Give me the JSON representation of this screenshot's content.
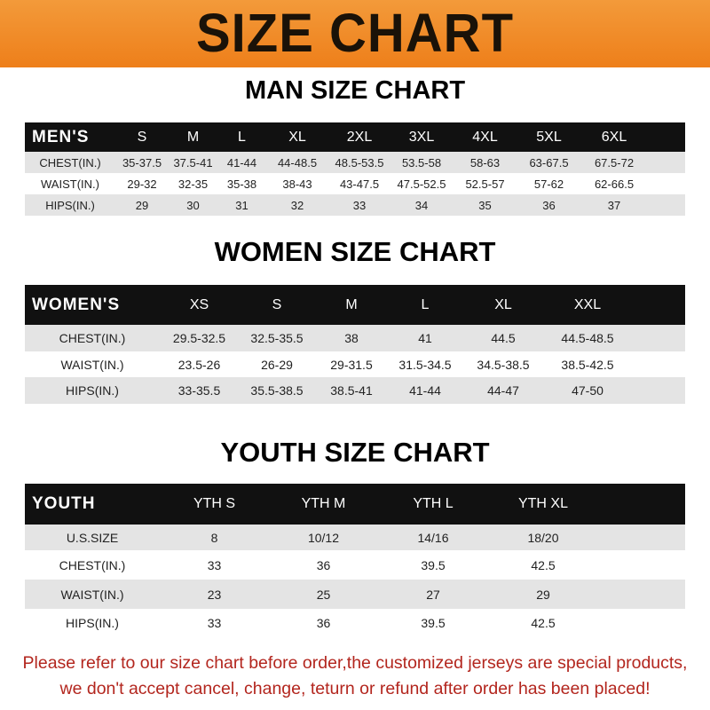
{
  "title": "SIZE CHART",
  "men": {
    "title": "MAN SIZE CHART",
    "header": [
      "MEN'S",
      "S",
      "M",
      "L",
      "XL",
      "2XL",
      "3XL",
      "4XL",
      "5XL",
      "6XL"
    ],
    "rows": [
      [
        "CHEST(IN.)",
        "35-37.5",
        "37.5-41",
        "41-44",
        "44-48.5",
        "48.5-53.5",
        "53.5-58",
        "58-63",
        "63-67.5",
        "67.5-72"
      ],
      [
        "WAIST(IN.)",
        "29-32",
        "32-35",
        "35-38",
        "38-43",
        "43-47.5",
        "47.5-52.5",
        "52.5-57",
        "57-62",
        "62-66.5"
      ],
      [
        "HIPS(IN.)",
        "29",
        "30",
        "31",
        "32",
        "33",
        "34",
        "35",
        "36",
        "37"
      ]
    ]
  },
  "women": {
    "title": "WOMEN SIZE CHART",
    "header": [
      "WOMEN'S",
      "XS",
      "S",
      "M",
      "L",
      "XL",
      "XXL"
    ],
    "rows": [
      [
        "CHEST(IN.)",
        "29.5-32.5",
        "32.5-35.5",
        "38",
        "41",
        "44.5",
        "44.5-48.5"
      ],
      [
        "WAIST(IN.)",
        "23.5-26",
        "26-29",
        "29-31.5",
        "31.5-34.5",
        "34.5-38.5",
        "38.5-42.5"
      ],
      [
        "HIPS(IN.)",
        "33-35.5",
        "35.5-38.5",
        "38.5-41",
        "41-44",
        "44-47",
        "47-50"
      ]
    ]
  },
  "youth": {
    "title": "YOUTH SIZE CHART",
    "header": [
      "YOUTH",
      "YTH S",
      "YTH M",
      "YTH L",
      "YTH XL"
    ],
    "rows": [
      [
        "U.S.SIZE",
        "8",
        "10/12",
        "14/16",
        "18/20"
      ],
      [
        "CHEST(IN.)",
        "33",
        "36",
        "39.5",
        "42.5"
      ],
      [
        "WAIST(IN.)",
        "23",
        "25",
        "27",
        "29"
      ],
      [
        "HIPS(IN.)",
        "33",
        "36",
        "39.5",
        "42.5"
      ]
    ]
  },
  "note": {
    "line1": "Please refer to our size chart before order,the customized jerseys are special products,",
    "line2": "we don't accept cancel, change, teturn or refund after order has been placed!"
  },
  "colors": {
    "banner": "#ee8a25",
    "header_row": "#111111",
    "alt_row": "#e4e4e4",
    "note": "#b3261e"
  }
}
